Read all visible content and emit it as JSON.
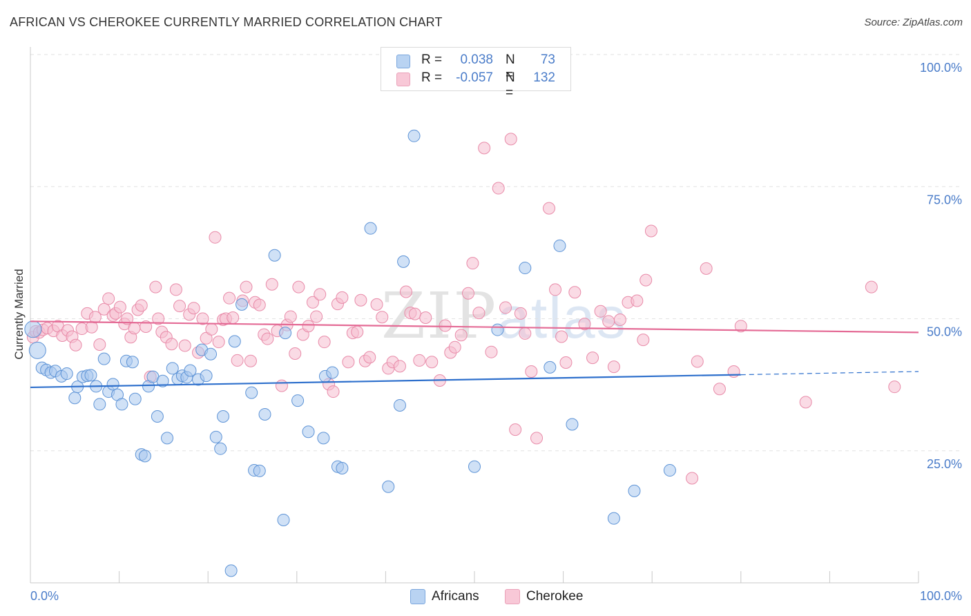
{
  "header": {
    "title": "AFRICAN VS CHEROKEE CURRENTLY MARRIED CORRELATION CHART",
    "source": "Source: ZipAtlas.com"
  },
  "watermark": {
    "zip": "ZIP",
    "atlas": "atlas"
  },
  "legend": {
    "africans": {
      "r_label": "R =",
      "r_value": "0.038",
      "n_label": "N =",
      "n_value": "73"
    },
    "cherokee": {
      "r_label": "R =",
      "r_value": "-0.057",
      "n_label": "N =",
      "n_value": "132"
    }
  },
  "bottom_legend": {
    "africans": "Africans",
    "cherokee": "Cherokee"
  },
  "colors": {
    "africans_fill": "#a9c8ee",
    "africans_stroke": "#5d93d6",
    "africans_line": "#2d6fcc",
    "cherokee_fill": "#f6bdd0",
    "cherokee_stroke": "#e88aa8",
    "cherokee_line": "#e46a95",
    "tick_text": "#4a7cc9",
    "grid": "#e2e2e2"
  },
  "chart_data": {
    "type": "scatter",
    "title": "AFRICAN VS CHEROKEE CURRENTLY MARRIED CORRELATION CHART",
    "xlabel": "",
    "ylabel": "Currently Married",
    "xlim": [
      0,
      100
    ],
    "ylim": [
      0,
      100
    ],
    "x_ticks": [
      "0.0%",
      "100.0%"
    ],
    "y_ticks": [
      "25.0%",
      "50.0%",
      "75.0%",
      "100.0%"
    ],
    "y_tick_values": [
      25,
      50,
      75,
      100
    ],
    "grid": true,
    "legend_position": "top-center",
    "series": [
      {
        "name": "Africans",
        "R": 0.038,
        "N": 73,
        "trend": {
          "x": [
            0,
            80
          ],
          "y": [
            37.0,
            39.4
          ],
          "dashed_to": [
            100,
            40.0
          ]
        },
        "points": [
          [
            0.3,
            48.0
          ],
          [
            0.8,
            44.0
          ],
          [
            1.3,
            40.7
          ],
          [
            1.8,
            40.3
          ],
          [
            2.3,
            39.8
          ],
          [
            2.8,
            40.1
          ],
          [
            3.5,
            39.1
          ],
          [
            4.1,
            39.6
          ],
          [
            5.0,
            35.0
          ],
          [
            5.3,
            37.1
          ],
          [
            5.9,
            39.0
          ],
          [
            6.4,
            39.2
          ],
          [
            6.8,
            39.3
          ],
          [
            7.4,
            37.2
          ],
          [
            7.8,
            33.8
          ],
          [
            8.3,
            42.4
          ],
          [
            8.8,
            36.2
          ],
          [
            9.3,
            37.6
          ],
          [
            9.8,
            35.6
          ],
          [
            10.3,
            33.8
          ],
          [
            10.8,
            42.0
          ],
          [
            11.5,
            41.8
          ],
          [
            11.8,
            34.8
          ],
          [
            12.5,
            24.3
          ],
          [
            12.9,
            24.0
          ],
          [
            13.3,
            37.2
          ],
          [
            13.8,
            39.0
          ],
          [
            14.3,
            31.5
          ],
          [
            14.9,
            38.2
          ],
          [
            15.4,
            27.4
          ],
          [
            16.0,
            40.6
          ],
          [
            16.6,
            38.6
          ],
          [
            17.1,
            39.2
          ],
          [
            17.6,
            38.9
          ],
          [
            18.0,
            40.2
          ],
          [
            18.9,
            38.5
          ],
          [
            19.3,
            44.1
          ],
          [
            19.8,
            39.2
          ],
          [
            20.3,
            43.3
          ],
          [
            20.9,
            27.6
          ],
          [
            21.4,
            25.4
          ],
          [
            21.7,
            31.5
          ],
          [
            22.6,
            2.3
          ],
          [
            23.0,
            45.7
          ],
          [
            23.8,
            52.7
          ],
          [
            24.9,
            36.0
          ],
          [
            25.2,
            21.3
          ],
          [
            25.8,
            21.2
          ],
          [
            26.4,
            31.9
          ],
          [
            27.5,
            62.0
          ],
          [
            28.5,
            11.9
          ],
          [
            28.7,
            47.3
          ],
          [
            30.1,
            34.5
          ],
          [
            31.3,
            28.6
          ],
          [
            33.0,
            27.4
          ],
          [
            33.2,
            39.1
          ],
          [
            34.0,
            39.8
          ],
          [
            34.6,
            22.0
          ],
          [
            35.1,
            21.7
          ],
          [
            38.3,
            67.1
          ],
          [
            40.3,
            18.2
          ],
          [
            41.6,
            33.6
          ],
          [
            42.0,
            60.8
          ],
          [
            43.2,
            84.6
          ],
          [
            52.6,
            47.9
          ],
          [
            55.7,
            59.6
          ],
          [
            58.5,
            40.8
          ],
          [
            59.6,
            63.8
          ],
          [
            65.7,
            12.2
          ],
          [
            68.0,
            17.4
          ],
          [
            72.0,
            21.3
          ],
          [
            50.0,
            22.0
          ],
          [
            61.0,
            30.0
          ]
        ]
      },
      {
        "name": "Cherokee",
        "R": -0.057,
        "N": 132,
        "trend": {
          "x": [
            0,
            100
          ],
          "y": [
            49.5,
            47.4
          ]
        },
        "points": [
          [
            0.3,
            46.5
          ],
          [
            0.6,
            47.6
          ],
          [
            1.0,
            47.4
          ],
          [
            1.4,
            47.9
          ],
          [
            1.9,
            48.2
          ],
          [
            2.6,
            47.7
          ],
          [
            3.1,
            48.6
          ],
          [
            3.6,
            46.8
          ],
          [
            4.2,
            47.8
          ],
          [
            4.7,
            46.6
          ],
          [
            5.1,
            45.0
          ],
          [
            5.8,
            48.1
          ],
          [
            6.4,
            51.0
          ],
          [
            6.9,
            48.4
          ],
          [
            7.3,
            50.3
          ],
          [
            7.8,
            45.1
          ],
          [
            8.3,
            51.8
          ],
          [
            8.8,
            53.8
          ],
          [
            9.3,
            50.6
          ],
          [
            9.6,
            51.0
          ],
          [
            10.1,
            52.2
          ],
          [
            10.6,
            49.0
          ],
          [
            10.9,
            50.0
          ],
          [
            11.3,
            46.5
          ],
          [
            11.7,
            48.2
          ],
          [
            12.1,
            51.7
          ],
          [
            12.5,
            52.5
          ],
          [
            13.0,
            48.5
          ],
          [
            13.5,
            39.0
          ],
          [
            14.1,
            56.0
          ],
          [
            14.4,
            50.0
          ],
          [
            14.8,
            47.5
          ],
          [
            15.3,
            46.5
          ],
          [
            15.9,
            45.2
          ],
          [
            16.4,
            55.5
          ],
          [
            16.8,
            52.4
          ],
          [
            17.4,
            44.9
          ],
          [
            17.9,
            50.8
          ],
          [
            18.4,
            52.0
          ],
          [
            18.9,
            43.6
          ],
          [
            19.4,
            50.0
          ],
          [
            19.8,
            46.3
          ],
          [
            20.4,
            48.0
          ],
          [
            20.8,
            65.4
          ],
          [
            21.2,
            45.6
          ],
          [
            21.7,
            49.8
          ],
          [
            22.0,
            50.0
          ],
          [
            22.4,
            53.9
          ],
          [
            22.8,
            50.2
          ],
          [
            23.3,
            42.1
          ],
          [
            23.9,
            53.4
          ],
          [
            24.3,
            56.0
          ],
          [
            24.8,
            42.0
          ],
          [
            25.3,
            53.1
          ],
          [
            25.8,
            52.6
          ],
          [
            26.3,
            47.0
          ],
          [
            26.7,
            46.2
          ],
          [
            27.2,
            56.5
          ],
          [
            27.8,
            47.7
          ],
          [
            28.3,
            37.3
          ],
          [
            28.9,
            48.8
          ],
          [
            29.3,
            50.4
          ],
          [
            29.8,
            43.4
          ],
          [
            30.2,
            56.0
          ],
          [
            30.7,
            47.0
          ],
          [
            31.3,
            48.6
          ],
          [
            31.8,
            53.1
          ],
          [
            32.2,
            50.4
          ],
          [
            32.6,
            54.6
          ],
          [
            33.1,
            45.6
          ],
          [
            33.6,
            37.6
          ],
          [
            34.1,
            36.2
          ],
          [
            34.6,
            52.8
          ],
          [
            35.1,
            54.0
          ],
          [
            35.8,
            41.8
          ],
          [
            36.3,
            47.3
          ],
          [
            36.8,
            47.5
          ],
          [
            37.2,
            53.5
          ],
          [
            37.7,
            42.0
          ],
          [
            38.2,
            42.7
          ],
          [
            39.0,
            52.7
          ],
          [
            39.6,
            50.3
          ],
          [
            40.3,
            40.6
          ],
          [
            40.8,
            41.8
          ],
          [
            41.6,
            41.0
          ],
          [
            42.3,
            55.1
          ],
          [
            42.8,
            51.1
          ],
          [
            43.3,
            50.9
          ],
          [
            43.8,
            42.1
          ],
          [
            44.5,
            50.2
          ],
          [
            45.2,
            41.8
          ],
          [
            46.1,
            38.3
          ],
          [
            46.7,
            48.7
          ],
          [
            47.3,
            43.6
          ],
          [
            47.8,
            44.6
          ],
          [
            48.5,
            46.9
          ],
          [
            49.3,
            54.8
          ],
          [
            49.8,
            60.5
          ],
          [
            50.5,
            51.1
          ],
          [
            51.1,
            82.3
          ],
          [
            51.9,
            43.7
          ],
          [
            52.7,
            74.7
          ],
          [
            53.5,
            52.1
          ],
          [
            54.1,
            84.0
          ],
          [
            54.6,
            29.0
          ],
          [
            55.2,
            51.0
          ],
          [
            55.7,
            47.2
          ],
          [
            56.4,
            40.0
          ],
          [
            57.0,
            27.4
          ],
          [
            58.4,
            70.9
          ],
          [
            59.1,
            55.5
          ],
          [
            59.8,
            46.6
          ],
          [
            60.3,
            41.7
          ],
          [
            61.3,
            55.0
          ],
          [
            62.4,
            49.0
          ],
          [
            63.3,
            42.6
          ],
          [
            64.2,
            51.4
          ],
          [
            65.1,
            49.5
          ],
          [
            65.7,
            40.9
          ],
          [
            66.4,
            49.8
          ],
          [
            67.3,
            53.1
          ],
          [
            68.3,
            53.4
          ],
          [
            69.0,
            46.0
          ],
          [
            69.3,
            57.3
          ],
          [
            69.9,
            66.6
          ],
          [
            74.5,
            19.8
          ],
          [
            75.1,
            41.9
          ],
          [
            76.1,
            59.5
          ],
          [
            77.6,
            36.7
          ],
          [
            79.2,
            40.0
          ],
          [
            80.0,
            48.6
          ],
          [
            87.3,
            34.2
          ],
          [
            94.7,
            56.0
          ],
          [
            97.3,
            37.1
          ]
        ]
      }
    ]
  }
}
